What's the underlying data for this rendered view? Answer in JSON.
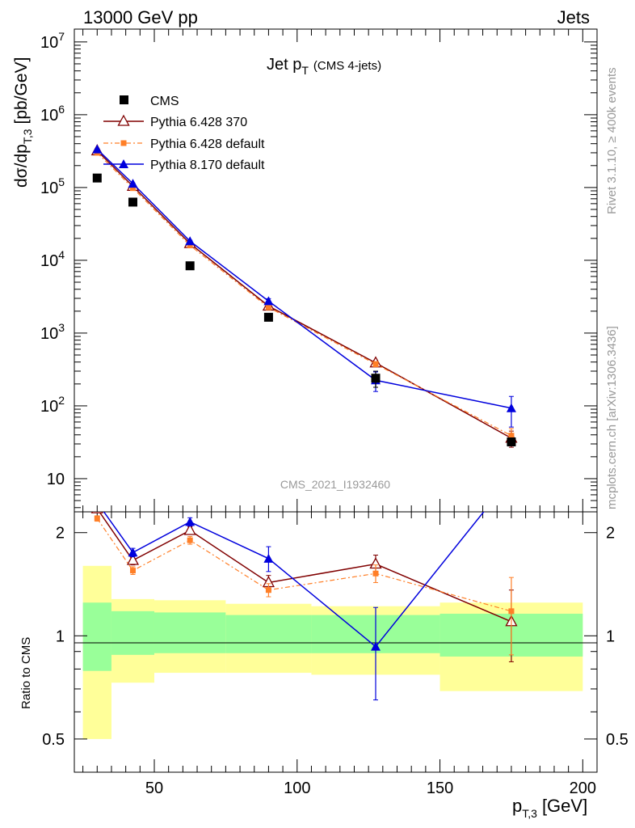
{
  "header": {
    "left": "13000 GeV pp",
    "right": "Jets"
  },
  "side": {
    "rivet": "Rivet 3.1.10, ≥ 400k events",
    "mcplots": "mcplots.cern.ch [arXiv:1306.3436]"
  },
  "chart_data": [
    {
      "type": "line",
      "title": "Jet p",
      "title_sub": "T",
      "title_note": "(CMS 4-jets)",
      "watermark": "CMS_2021_I1932460",
      "ylabel": {
        "main": "dσ/dp",
        "sub": "T,3",
        "unit": "[pb/GeV]"
      },
      "yscale": "log",
      "xlim": [
        22,
        205
      ],
      "ylim": [
        3.5,
        15000000
      ],
      "y_ticks": [
        {
          "value": 10,
          "label": "10"
        },
        {
          "value": 100,
          "label": "10",
          "exp": "2"
        },
        {
          "value": 1000,
          "label": "10",
          "exp": "3"
        },
        {
          "value": 10000,
          "label": "10",
          "exp": "4"
        },
        {
          "value": 100000,
          "label": "10",
          "exp": "5"
        },
        {
          "value": 1000000,
          "label": "10",
          "exp": "6"
        },
        {
          "value": 10000000,
          "label": "10",
          "exp": "7"
        }
      ],
      "legend_position": "top-left",
      "series": [
        {
          "name": "CMS",
          "color": "#000000",
          "marker": "square",
          "x": [
            30,
            42.5,
            62.5,
            90,
            127.5,
            175
          ],
          "y": [
            135000,
            63000,
            8400,
            1650,
            240,
            32
          ],
          "yerr_rel": [
            0.02,
            0.02,
            0.02,
            0.02,
            0.25,
            0.12
          ]
        },
        {
          "name": "Pythia 6.428 370",
          "color": "#800000",
          "marker": "open-triangle",
          "style": "solid",
          "x": [
            30,
            42.5,
            62.5,
            90,
            127.5,
            175
          ],
          "y": [
            320000,
            104000,
            17000,
            2350,
            390,
            36
          ],
          "yerr_rel": [
            0.02,
            0.02,
            0.03,
            0.05,
            0.08,
            0.25
          ]
        },
        {
          "name": "Pythia 6.428 default",
          "color": "#ff7f27",
          "marker": "small-square",
          "style": "dash-dot",
          "x": [
            30,
            42.5,
            62.5,
            90,
            127.5,
            175
          ],
          "y": [
            300000,
            98000,
            16000,
            2250,
            375,
            39
          ],
          "yerr_rel": [
            0.02,
            0.02,
            0.03,
            0.05,
            0.08,
            0.25
          ]
        },
        {
          "name": "Pythia 8.170 default",
          "color": "#0000dd",
          "marker": "triangle",
          "style": "solid",
          "x": [
            30,
            42.5,
            62.5,
            90,
            127.5,
            175
          ],
          "y": [
            335000,
            113000,
            18300,
            2750,
            225,
            93
          ],
          "yerr_rel": [
            0.02,
            0.02,
            0.03,
            0.08,
            0.3,
            0.45
          ]
        }
      ]
    },
    {
      "type": "line",
      "ylabel": "Ratio to CMS",
      "yscale": "log",
      "xlabel": {
        "main": "p",
        "sub": "T,3",
        "unit": "[GeV]"
      },
      "xlim": [
        22,
        205
      ],
      "ylim": [
        0.4,
        2.3
      ],
      "x_ticks": [
        50,
        100,
        150,
        200
      ],
      "y_ticks": [
        {
          "value": 0.5,
          "label": "0.5"
        },
        {
          "value": 1,
          "label": "1"
        },
        {
          "value": 2,
          "label": "2"
        }
      ],
      "bands": [
        {
          "x0": 25,
          "x1": 35,
          "inner": [
            0.79,
            1.25
          ],
          "outer": [
            0.5,
            1.6
          ]
        },
        {
          "x0": 35,
          "x1": 50,
          "inner": [
            0.88,
            1.18
          ],
          "outer": [
            0.73,
            1.28
          ]
        },
        {
          "x0": 50,
          "x1": 75,
          "inner": [
            0.89,
            1.17
          ],
          "outer": [
            0.78,
            1.27
          ]
        },
        {
          "x0": 75,
          "x1": 105,
          "inner": [
            0.89,
            1.15
          ],
          "outer": [
            0.78,
            1.24
          ]
        },
        {
          "x0": 105,
          "x1": 150,
          "inner": [
            0.89,
            1.15
          ],
          "outer": [
            0.77,
            1.22
          ]
        },
        {
          "x0": 150,
          "x1": 200,
          "inner": [
            0.87,
            1.16
          ],
          "outer": [
            0.69,
            1.25
          ]
        }
      ],
      "series": [
        {
          "name": "Pythia 6.428 370",
          "color": "#800000",
          "marker": "open-triangle",
          "style": "solid",
          "x": [
            30,
            42.5,
            62.5,
            90,
            127.5,
            175
          ],
          "y": [
            2.35,
            1.66,
            2.03,
            1.43,
            1.62,
            1.1
          ],
          "yerr": [
            0.05,
            0.05,
            0.05,
            0.07,
            0.1,
            0.26
          ]
        },
        {
          "name": "Pythia 6.428 default",
          "color": "#ff7f27",
          "marker": "small-square",
          "style": "dash-dot",
          "x": [
            30,
            42.5,
            62.5,
            90,
            127.5,
            175
          ],
          "y": [
            2.2,
            1.55,
            1.9,
            1.36,
            1.52,
            1.18
          ],
          "yerr": [
            0.04,
            0.04,
            0.05,
            0.06,
            0.09,
            0.3
          ]
        },
        {
          "name": "Pythia 8.170 default",
          "color": "#0000dd",
          "marker": "triangle",
          "style": "solid",
          "x": [
            30,
            42.5,
            62.5,
            90,
            127.5,
            175
          ],
          "y": [
            2.45,
            1.75,
            2.15,
            1.68,
            0.93,
            2.9
          ],
          "yerr": [
            0.05,
            0.05,
            0.06,
            0.14,
            0.28,
            0.5
          ]
        }
      ]
    }
  ]
}
